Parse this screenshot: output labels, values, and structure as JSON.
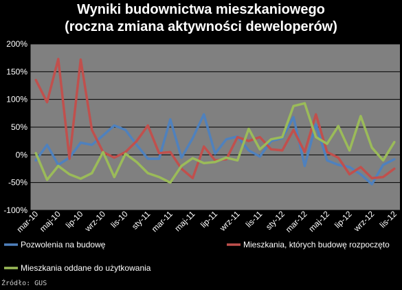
{
  "chart_data": {
    "type": "line",
    "title": [
      "Wyniki budownictwa mieszkaniowego",
      "(roczna zmiana aktywności deweloperów)"
    ],
    "xlabel": "",
    "ylabel": "",
    "ylim": [
      -100,
      200
    ],
    "yticks": [
      "200%",
      "150%",
      "100%",
      "50%",
      "0%",
      "-50%",
      "-100%"
    ],
    "ytick_values": [
      200,
      150,
      100,
      50,
      0,
      -50,
      -100
    ],
    "grid": true,
    "legend_position": "bottom",
    "categories": [
      "mar-10",
      "kwi-10",
      "maj-10",
      "cze-10",
      "lip-10",
      "sie-10",
      "wrz-10",
      "paź-10",
      "lis-10",
      "gru-10",
      "sty-11",
      "lut-11",
      "mar-11",
      "kwi-11",
      "maj-11",
      "cze-11",
      "lip-11",
      "sie-11",
      "wrz-11",
      "paź-11",
      "lis-11",
      "gru-11",
      "sty-12",
      "lut-12",
      "mar-12",
      "kwi-12",
      "maj-12",
      "cze-12",
      "lip-12",
      "sie-12",
      "wrz-12",
      "paź-12",
      "lis-12"
    ],
    "xtick_labels": [
      "mar-10",
      "maj-10",
      "lip-10",
      "wrz-10",
      "lis-10",
      "sty-11",
      "mar-11",
      "maj-11",
      "lip-11",
      "wrz-11",
      "lis-11",
      "sty-12",
      "mar-12",
      "maj-12",
      "lip-12",
      "wrz-12",
      "lis-12"
    ],
    "series": [
      {
        "name": "Pozwolenia na budowę",
        "color": "#4f81bd",
        "values": [
          -10,
          18,
          -18,
          -5,
          22,
          18,
          35,
          53,
          45,
          18,
          -7,
          -7,
          64,
          -5,
          30,
          73,
          2,
          28,
          33,
          8,
          -3,
          25,
          30,
          68,
          -20,
          55,
          -10,
          -18,
          -22,
          -35,
          -53,
          -18,
          -8
        ]
      },
      {
        "name": "Mieszkania, których budowę rozpoczęto",
        "color": "#c0504d",
        "values": [
          135,
          95,
          173,
          -7,
          172,
          45,
          5,
          -5,
          5,
          25,
          53,
          3,
          5,
          -25,
          -42,
          15,
          -10,
          -8,
          32,
          25,
          32,
          10,
          8,
          45,
          5,
          73,
          5,
          -5,
          -35,
          -22,
          -42,
          -40,
          -25
        ]
      },
      {
        "name": "Mieszkania oddane do użytkowania",
        "color": "#9bbb59",
        "values": [
          3,
          -45,
          -20,
          -35,
          -43,
          -33,
          5,
          -40,
          2,
          -13,
          -33,
          -40,
          -50,
          -20,
          -6,
          -15,
          -13,
          -5,
          -10,
          47,
          10,
          28,
          32,
          88,
          93,
          32,
          20,
          52,
          8,
          70,
          13,
          -10,
          23
        ]
      }
    ]
  },
  "source": "Źródło: GUS"
}
